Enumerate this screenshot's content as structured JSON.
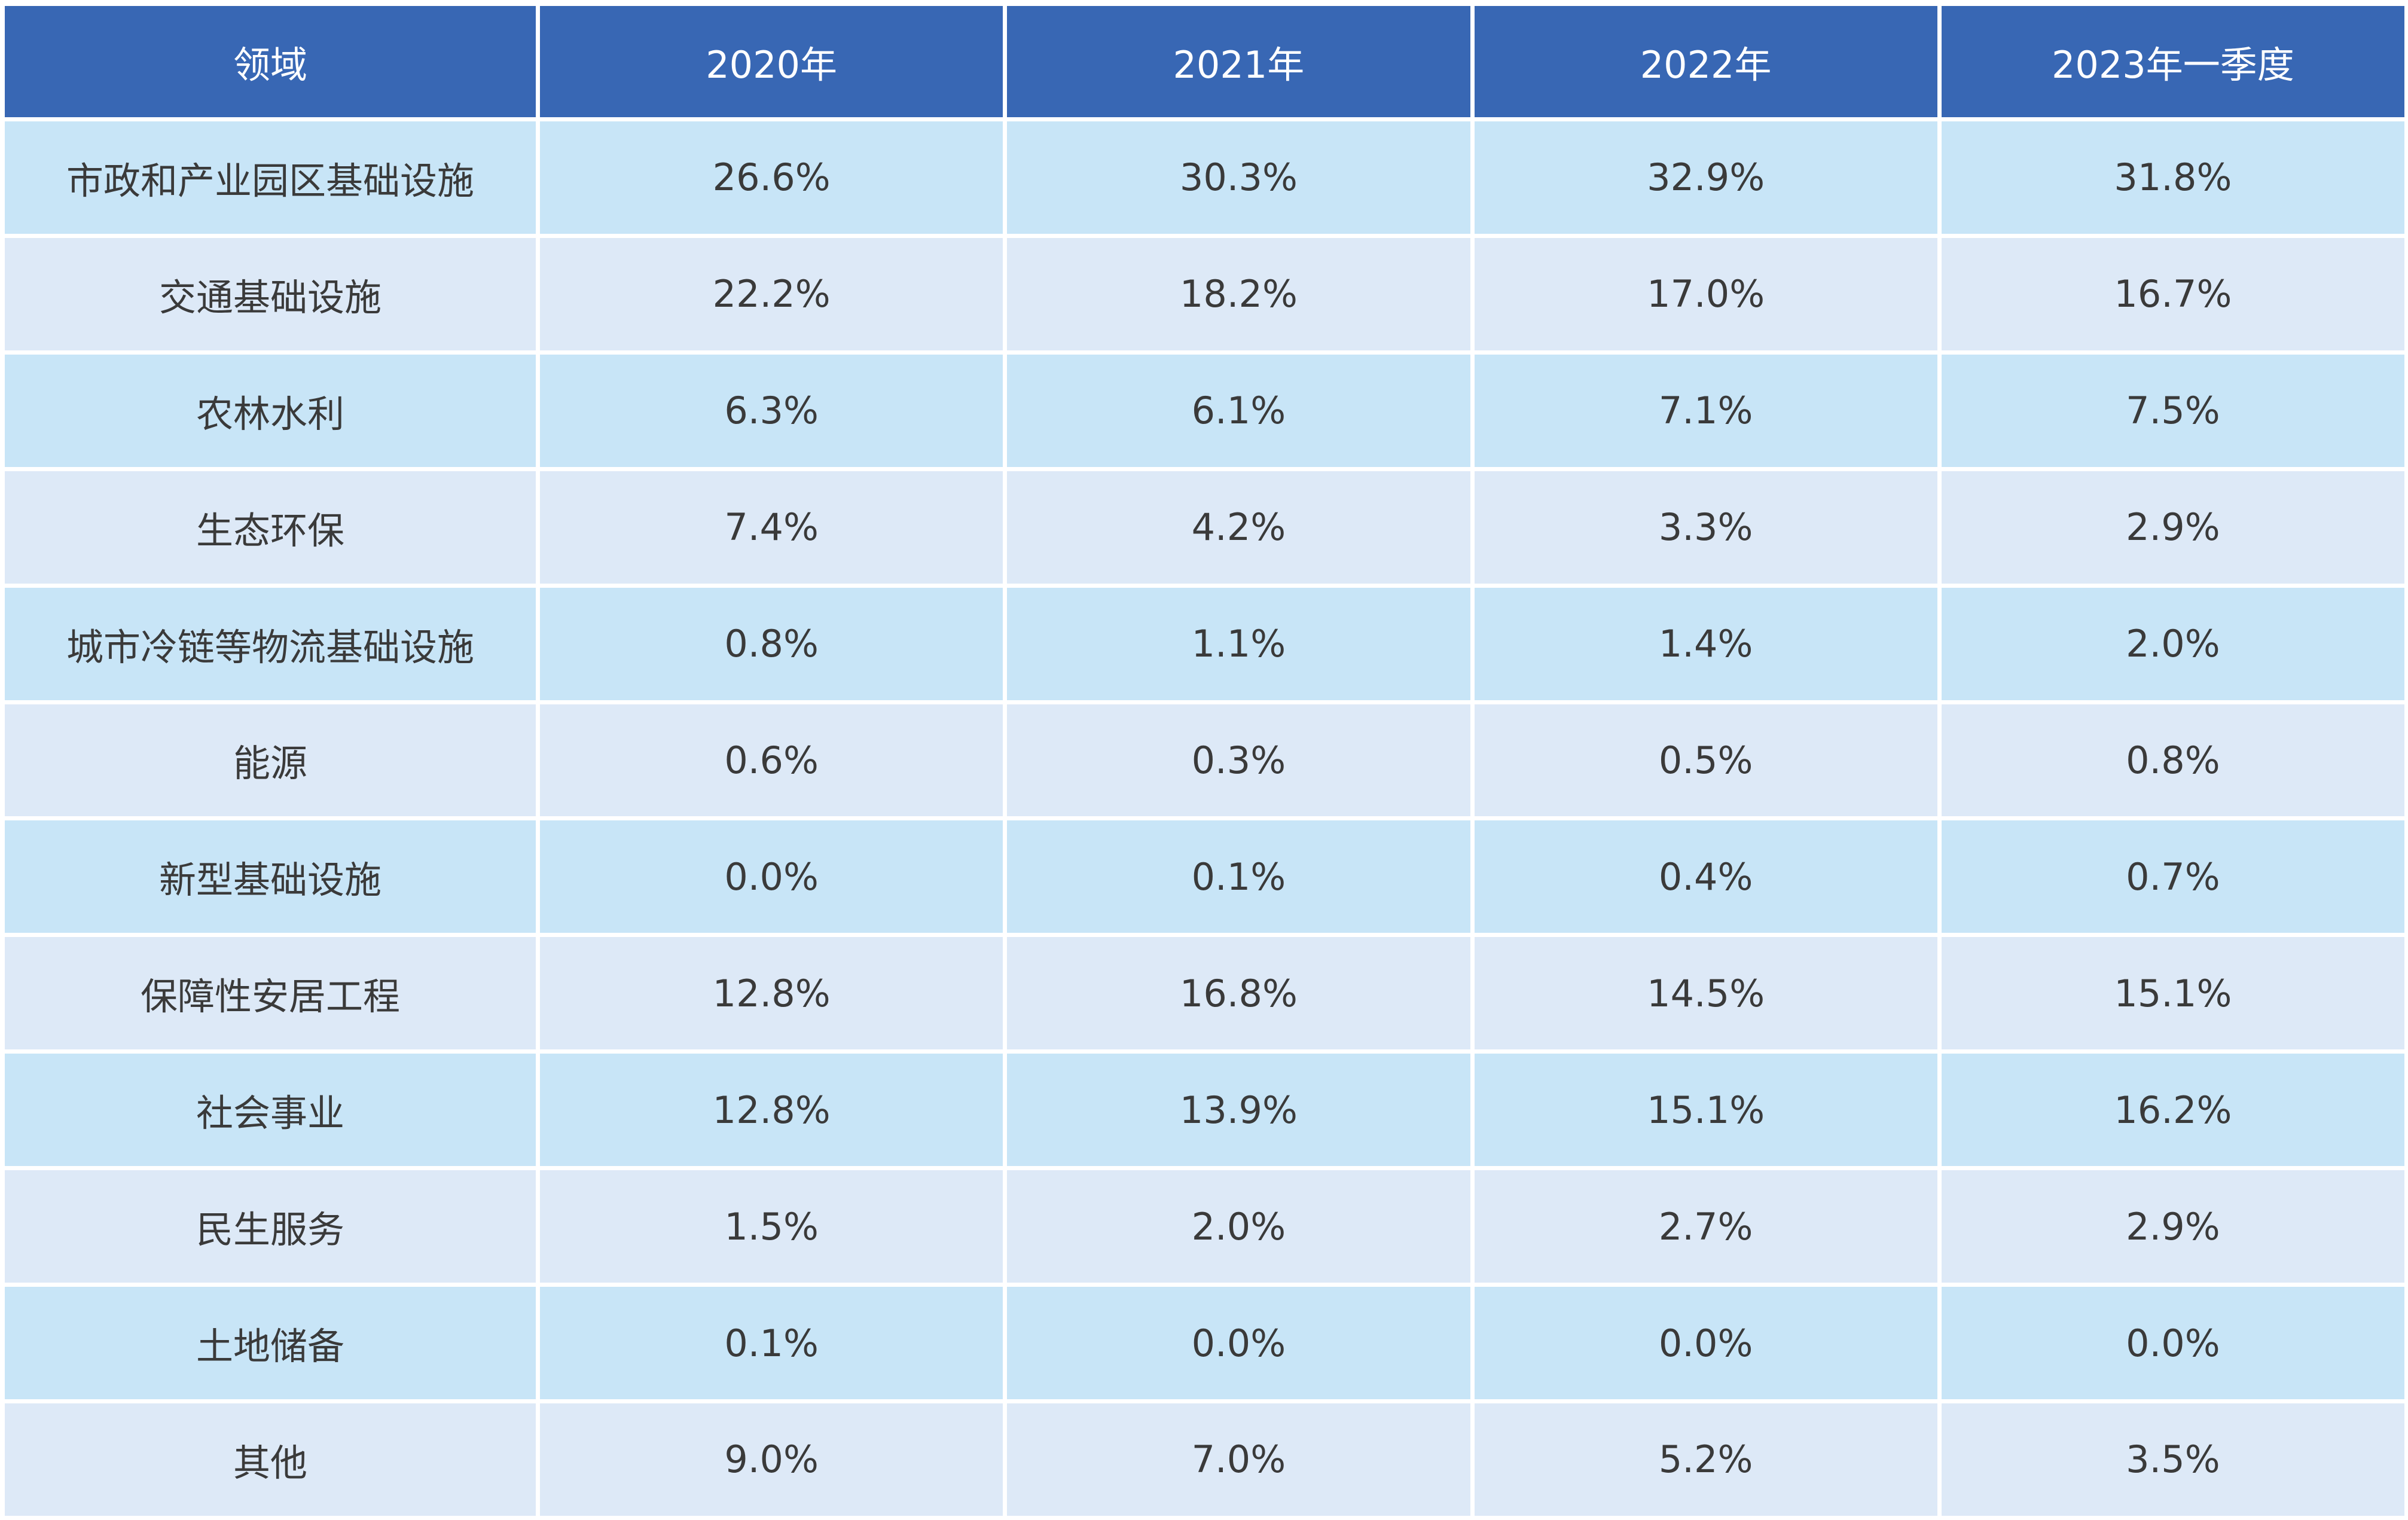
{
  "header": {
    "col0": "领域",
    "col1": "2020年",
    "col2": "2021年",
    "col3": "2022年",
    "col4": "2023年一季度"
  },
  "rows": [
    {
      "label": "市政和产业园区基础设施",
      "v2020": "26.6%",
      "v2021": "30.3%",
      "v2022": "32.9%",
      "v2023q1": "31.8%"
    },
    {
      "label": "交通基础设施",
      "v2020": "22.2%",
      "v2021": "18.2%",
      "v2022": "17.0%",
      "v2023q1": "16.7%"
    },
    {
      "label": "农林水利",
      "v2020": "6.3%",
      "v2021": "6.1%",
      "v2022": "7.1%",
      "v2023q1": "7.5%"
    },
    {
      "label": "生态环保",
      "v2020": "7.4%",
      "v2021": "4.2%",
      "v2022": "3.3%",
      "v2023q1": "2.9%"
    },
    {
      "label": "城市冷链等物流基础设施",
      "v2020": "0.8%",
      "v2021": "1.1%",
      "v2022": "1.4%",
      "v2023q1": "2.0%"
    },
    {
      "label": "能源",
      "v2020": "0.6%",
      "v2021": "0.3%",
      "v2022": "0.5%",
      "v2023q1": "0.8%"
    },
    {
      "label": "新型基础设施",
      "v2020": "0.0%",
      "v2021": "0.1%",
      "v2022": "0.4%",
      "v2023q1": "0.7%"
    },
    {
      "label": "保障性安居工程",
      "v2020": "12.8%",
      "v2021": "16.8%",
      "v2022": "14.5%",
      "v2023q1": "15.1%"
    },
    {
      "label": "社会事业",
      "v2020": "12.8%",
      "v2021": "13.9%",
      "v2022": "15.1%",
      "v2023q1": "16.2%"
    },
    {
      "label": "民生服务",
      "v2020": "1.5%",
      "v2021": "2.0%",
      "v2022": "2.7%",
      "v2023q1": "2.9%"
    },
    {
      "label": "土地储备",
      "v2020": "0.1%",
      "v2021": "0.0%",
      "v2022": "0.0%",
      "v2023q1": "0.0%"
    },
    {
      "label": "其他",
      "v2020": "9.0%",
      "v2021": "7.0%",
      "v2022": "5.2%",
      "v2023q1": "3.5%"
    }
  ],
  "colors": {
    "header_bg": "#3867b4",
    "row_odd_bg": "#c8e5f7",
    "row_even_bg": "#dde9f7",
    "text": "#3a3a3a"
  }
}
